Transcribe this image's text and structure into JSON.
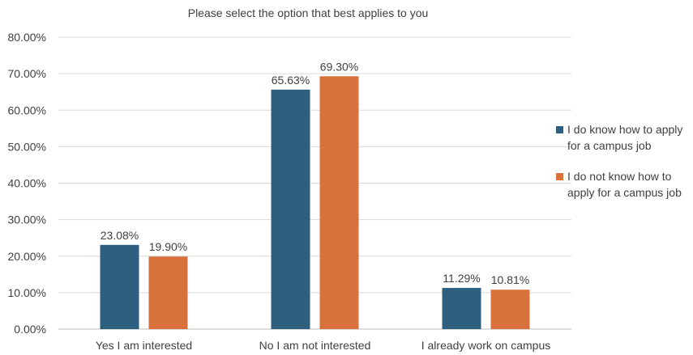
{
  "chart_data": {
    "type": "bar",
    "title": "Please select the option that best applies to you",
    "categories": [
      "Yes I am interested",
      "No I am not interested",
      "I already work on campus"
    ],
    "series": [
      {
        "name": "I do know how to apply for a campus job",
        "values": [
          23.08,
          65.63,
          11.29
        ],
        "labels": [
          "23.08%",
          "65.63%",
          "11.29%"
        ],
        "color": "#2E5F7F"
      },
      {
        "name": "I do not know how to apply for a campus job",
        "values": [
          19.9,
          69.3,
          10.81
        ],
        "labels": [
          "19.90%",
          "69.30%",
          "10.81%"
        ],
        "color": "#D9713D"
      }
    ],
    "ylim": [
      0,
      80
    ],
    "yticks": [
      "0.00%",
      "10.00%",
      "20.00%",
      "30.00%",
      "40.00%",
      "50.00%",
      "60.00%",
      "70.00%",
      "80.00%"
    ],
    "grid": true,
    "legend_position": "right"
  }
}
